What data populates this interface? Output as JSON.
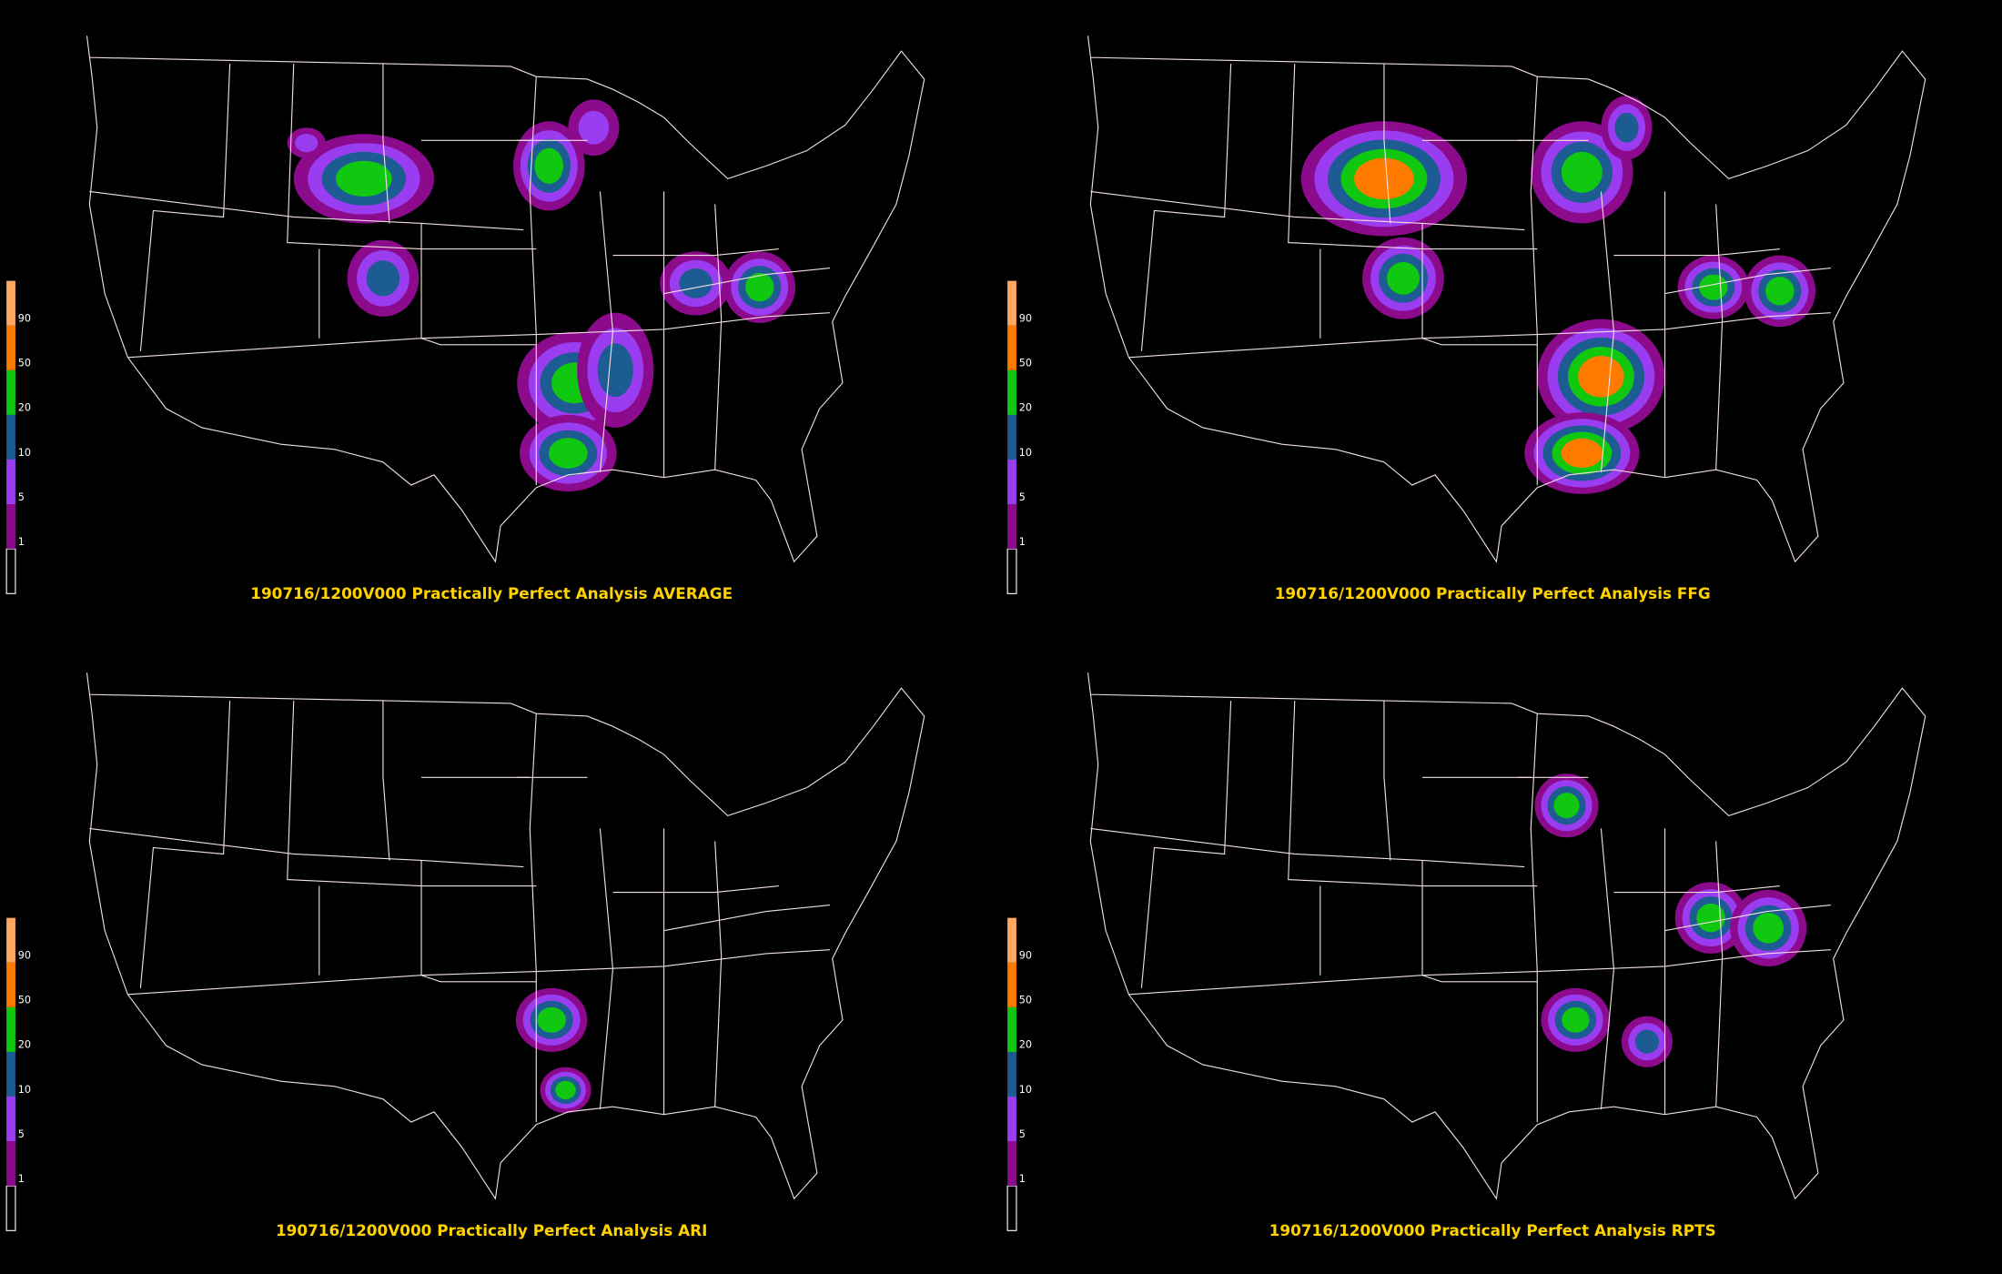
{
  "panels": [
    {
      "title": "190716/1200V000 Practically Perfect Analysis AVERAGE"
    },
    {
      "title": "190716/1200V000 Practically Perfect Analysis FFG"
    },
    {
      "title": "190716/1200V000 Practically Perfect Analysis ARI"
    },
    {
      "title": "190716/1200V000 Practically Perfect Analysis RPTS"
    }
  ],
  "colorbar": {
    "levels": [
      1,
      5,
      10,
      20,
      50,
      90
    ],
    "colors": [
      "#000000",
      "#8c0a8c",
      "#9a3cf0",
      "#1c5c92",
      "#10c810",
      "#ff7a00",
      "#ffa860"
    ]
  }
}
